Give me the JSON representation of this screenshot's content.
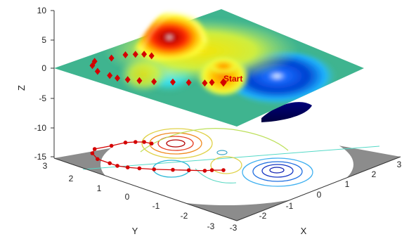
{
  "chart_data": {
    "type": "surface-3d",
    "title": "",
    "xlabel": "X",
    "ylabel": "Y",
    "zlabel": "Z",
    "xlim": [
      -3,
      3
    ],
    "ylim": [
      -3,
      3
    ],
    "zlim": [
      -15,
      10
    ],
    "x_ticks": [
      "-3",
      "-2",
      "-1",
      "0",
      "1",
      "2",
      "3"
    ],
    "y_ticks": [
      "-3",
      "-2",
      "-1",
      "0",
      "1",
      "2",
      "3"
    ],
    "z_ticks": [
      "-15",
      "-10",
      "-5",
      "0",
      "5",
      "10"
    ],
    "grid": false,
    "colormap": "jet",
    "zero_plane_color": "#3fb48f",
    "surface_peaks": [
      {
        "x": 0,
        "y": 1.6,
        "z": 8.1
      },
      {
        "x": -1.4,
        "y": 0,
        "z": 3.6
      },
      {
        "x": 0.2,
        "y": -1.6,
        "z": -6.5
      }
    ],
    "annotation": {
      "text": "Start",
      "color": "#d40000"
    },
    "path_points": [
      {
        "x": -0.7,
        "y": -0.5
      },
      {
        "x": -0.9,
        "y": -0.3
      },
      {
        "x": -1.05,
        "y": -0.2
      },
      {
        "x": -1.3,
        "y": 0.1
      },
      {
        "x": -1.55,
        "y": 0.4
      },
      {
        "x": -1.85,
        "y": 0.75
      },
      {
        "x": -2.05,
        "y": 1.05
      },
      {
        "x": -2.2,
        "y": 1.3
      },
      {
        "x": -2.3,
        "y": 1.55
      },
      {
        "x": -2.3,
        "y": 1.8
      },
      {
        "x": -2.3,
        "y": 2.2
      },
      {
        "x": -2.1,
        "y": 2.55
      },
      {
        "x": -1.85,
        "y": 2.7
      },
      {
        "x": -1.4,
        "y": 2.55
      },
      {
        "x": -1.0,
        "y": 2.45
      },
      {
        "x": -0.8,
        "y": 2.3
      },
      {
        "x": -0.65,
        "y": 2.15
      },
      {
        "x": -0.6,
        "y": 1.95
      }
    ]
  }
}
